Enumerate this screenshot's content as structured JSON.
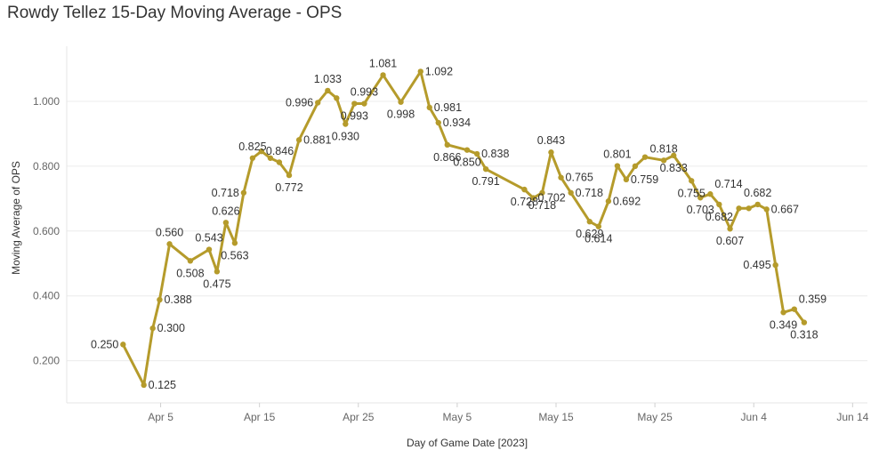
{
  "chart_data": {
    "type": "line",
    "title": "Rowdy Tellez 15-Day Moving Average - OPS",
    "xlabel": "Day of Game Date [2023]",
    "ylabel": "Moving Average of OPS",
    "ylim": [
      0.07,
      1.17
    ],
    "yticks": [
      "0.200",
      "0.400",
      "0.600",
      "0.800",
      "1.000"
    ],
    "ytick_values": [
      0.2,
      0.4,
      0.6,
      0.8,
      1.0
    ],
    "xticks": [
      "Apr 5",
      "Apr 15",
      "Apr 25",
      "May 5",
      "May 15",
      "May 25",
      "Jun 4",
      "Jun 14"
    ],
    "xtick_days": [
      5,
      15,
      25,
      35,
      45,
      55,
      65,
      75
    ],
    "x_range_days": [
      -4.5,
      76.5
    ],
    "line_color": "#b59b2b",
    "grid": true,
    "series": [
      {
        "name": "Moving Average of OPS",
        "points": [
          {
            "day": 1.2,
            "value": 0.25,
            "label": "0.250",
            "pos": "left"
          },
          {
            "day": 3.3,
            "value": 0.125,
            "label": "0.125",
            "pos": "right"
          },
          {
            "day": 4.2,
            "value": 0.3,
            "label": "0.300",
            "pos": "right"
          },
          {
            "day": 4.9,
            "value": 0.388,
            "label": "0.388",
            "pos": "right"
          },
          {
            "day": 5.9,
            "value": 0.56,
            "label": "0.560",
            "pos": "above"
          },
          {
            "day": 8.0,
            "value": 0.508,
            "label": "0.508",
            "pos": "below"
          },
          {
            "day": 9.9,
            "value": 0.543,
            "label": "0.543",
            "pos": "above"
          },
          {
            "day": 10.7,
            "value": 0.475,
            "label": "0.475",
            "pos": "below"
          },
          {
            "day": 11.6,
            "value": 0.626,
            "label": "0.626",
            "pos": "above"
          },
          {
            "day": 12.5,
            "value": 0.563,
            "label": "0.563",
            "pos": "below"
          },
          {
            "day": 13.4,
            "value": 0.718,
            "label": "0.718",
            "pos": "left"
          },
          {
            "day": 14.3,
            "value": 0.825,
            "label": "0.825",
            "pos": "above"
          },
          {
            "day": 15.2,
            "value": 0.846,
            "label": "0.846",
            "pos": "right"
          },
          {
            "day": 16.1,
            "value": 0.825,
            "label": "",
            "pos": "none"
          },
          {
            "day": 17.0,
            "value": 0.812,
            "label": "",
            "pos": "none"
          },
          {
            "day": 18.0,
            "value": 0.772,
            "label": "0.772",
            "pos": "below"
          },
          {
            "day": 19.0,
            "value": 0.881,
            "label": "0.881",
            "pos": "right"
          },
          {
            "day": 20.9,
            "value": 0.996,
            "label": "0.996",
            "pos": "left"
          },
          {
            "day": 21.9,
            "value": 1.033,
            "label": "1.033",
            "pos": "above"
          },
          {
            "day": 22.8,
            "value": 1.01,
            "label": "",
            "pos": "none"
          },
          {
            "day": 23.7,
            "value": 0.93,
            "label": "0.930",
            "pos": "below"
          },
          {
            "day": 24.6,
            "value": 0.993,
            "label": "0.993",
            "pos": "below"
          },
          {
            "day": 25.6,
            "value": 0.993,
            "label": "0.993",
            "pos": "above"
          },
          {
            "day": 27.5,
            "value": 1.081,
            "label": "1.081",
            "pos": "above"
          },
          {
            "day": 29.3,
            "value": 0.998,
            "label": "0.998",
            "pos": "below"
          },
          {
            "day": 31.3,
            "value": 1.092,
            "label": "1.092",
            "pos": "right"
          },
          {
            "day": 32.2,
            "value": 0.981,
            "label": "0.981",
            "pos": "right"
          },
          {
            "day": 33.1,
            "value": 0.934,
            "label": "0.934",
            "pos": "right"
          },
          {
            "day": 34.0,
            "value": 0.866,
            "label": "0.866",
            "pos": "below"
          },
          {
            "day": 36.0,
            "value": 0.85,
            "label": "0.850",
            "pos": "below"
          },
          {
            "day": 37.0,
            "value": 0.838,
            "label": "0.838",
            "pos": "right"
          },
          {
            "day": 37.9,
            "value": 0.791,
            "label": "0.791",
            "pos": "below"
          },
          {
            "day": 41.8,
            "value": 0.728,
            "label": "0.728",
            "pos": "below"
          },
          {
            "day": 42.7,
            "value": 0.702,
            "label": "0.702",
            "pos": "right"
          },
          {
            "day": 43.6,
            "value": 0.718,
            "label": "0.718",
            "pos": "below"
          },
          {
            "day": 44.5,
            "value": 0.843,
            "label": "0.843",
            "pos": "above"
          },
          {
            "day": 45.5,
            "value": 0.765,
            "label": "0.765",
            "pos": "right"
          },
          {
            "day": 46.5,
            "value": 0.718,
            "label": "0.718",
            "pos": "right"
          },
          {
            "day": 48.4,
            "value": 0.629,
            "label": "0.629",
            "pos": "below"
          },
          {
            "day": 49.3,
            "value": 0.614,
            "label": "0.614",
            "pos": "below"
          },
          {
            "day": 50.3,
            "value": 0.692,
            "label": "0.692",
            "pos": "right"
          },
          {
            "day": 51.2,
            "value": 0.801,
            "label": "0.801",
            "pos": "above"
          },
          {
            "day": 52.1,
            "value": 0.759,
            "label": "0.759",
            "pos": "right"
          },
          {
            "day": 53.0,
            "value": 0.8,
            "label": "",
            "pos": "none"
          },
          {
            "day": 54.0,
            "value": 0.828,
            "label": "",
            "pos": "none"
          },
          {
            "day": 55.9,
            "value": 0.818,
            "label": "0.818",
            "pos": "above"
          },
          {
            "day": 56.9,
            "value": 0.833,
            "label": "0.833",
            "pos": "below"
          },
          {
            "day": 58.7,
            "value": 0.755,
            "label": "0.755",
            "pos": "below"
          },
          {
            "day": 59.6,
            "value": 0.703,
            "label": "0.703",
            "pos": "below"
          },
          {
            "day": 60.6,
            "value": 0.714,
            "label": "0.714",
            "pos": "above-right"
          },
          {
            "day": 61.5,
            "value": 0.682,
            "label": "0.682",
            "pos": "below"
          },
          {
            "day": 62.6,
            "value": 0.607,
            "label": "0.607",
            "pos": "below"
          },
          {
            "day": 63.5,
            "value": 0.67,
            "label": "",
            "pos": "none"
          },
          {
            "day": 64.5,
            "value": 0.67,
            "label": "",
            "pos": "none"
          },
          {
            "day": 65.4,
            "value": 0.682,
            "label": "0.682",
            "pos": "above"
          },
          {
            "day": 66.3,
            "value": 0.667,
            "label": "0.667",
            "pos": "right"
          },
          {
            "day": 67.2,
            "value": 0.495,
            "label": "0.495",
            "pos": "left"
          },
          {
            "day": 68.0,
            "value": 0.349,
            "label": "0.349",
            "pos": "below"
          },
          {
            "day": 69.1,
            "value": 0.359,
            "label": "0.359",
            "pos": "above-right"
          },
          {
            "day": 70.1,
            "value": 0.318,
            "label": "0.318",
            "pos": "below"
          }
        ]
      }
    ]
  }
}
